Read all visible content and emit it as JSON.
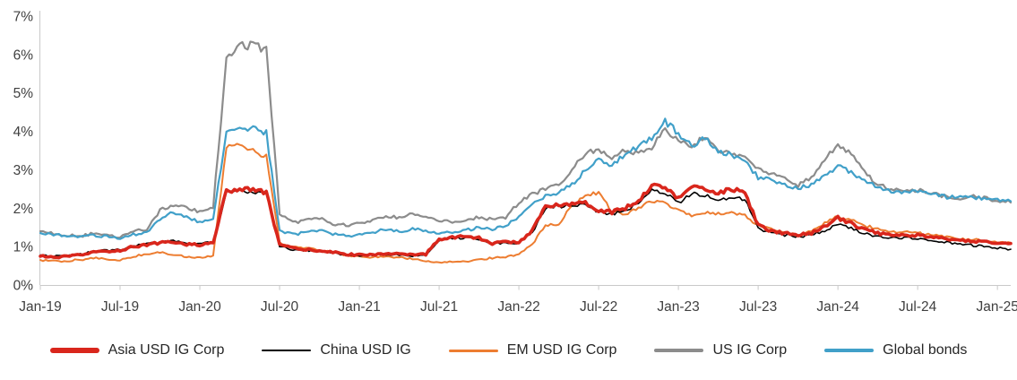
{
  "figure": {
    "background": "#FFFFFF"
  },
  "chart_data": {
    "type": "line",
    "title": "",
    "xlabel": "",
    "ylabel": "",
    "ylim": [
      0,
      7
    ],
    "grid": false,
    "legend_position": "bottom",
    "axis_color": "#C9C9C9",
    "tick_label_color": "#404040",
    "ytick_labels": [
      "0%",
      "1%",
      "2%",
      "3%",
      "4%",
      "5%",
      "6%",
      "7%"
    ],
    "xtick_labels": [
      "Jan-19",
      "Jul-19",
      "Jan-20",
      "Jul-20",
      "Jan-21",
      "Jul-21",
      "Jan-22",
      "Jul-22",
      "Jan-23",
      "Jul-23",
      "Jan-24",
      "Jul-24",
      "Jan-25"
    ],
    "xtick_every_n_points": 6,
    "x": [
      "Jan-19",
      "Feb-19",
      "Mar-19",
      "Apr-19",
      "May-19",
      "Jun-19",
      "Jul-19",
      "Aug-19",
      "Sep-19",
      "Oct-19",
      "Nov-19",
      "Dec-19",
      "Jan-20",
      "Feb-20",
      "Mar-20",
      "Apr-20",
      "May-20",
      "Jun-20",
      "Jul-20",
      "Aug-20",
      "Sep-20",
      "Oct-20",
      "Nov-20",
      "Dec-20",
      "Jan-21",
      "Feb-21",
      "Mar-21",
      "Apr-21",
      "May-21",
      "Jun-21",
      "Jul-21",
      "Aug-21",
      "Sep-21",
      "Oct-21",
      "Nov-21",
      "Dec-21",
      "Jan-22",
      "Feb-22",
      "Mar-22",
      "Apr-22",
      "May-22",
      "Jun-22",
      "Jul-22",
      "Aug-22",
      "Sep-22",
      "Oct-22",
      "Nov-22",
      "Dec-22",
      "Jan-23",
      "Feb-23",
      "Mar-23",
      "Apr-23",
      "May-23",
      "Jun-23",
      "Jul-23",
      "Aug-23",
      "Sep-23",
      "Oct-23",
      "Nov-23",
      "Dec-23",
      "Jan-24",
      "Feb-24",
      "Mar-24",
      "Apr-24",
      "May-24",
      "Jun-24",
      "Jul-24",
      "Aug-24",
      "Sep-24",
      "Oct-24",
      "Nov-24",
      "Dec-24",
      "Jan-25",
      "Feb-25"
    ],
    "series": [
      {
        "name": "Asia USD IG Corp",
        "color": "#D9261C",
        "line_width": 3.6,
        "legend_weight": 6,
        "values": [
          0.75,
          0.72,
          0.74,
          0.78,
          0.85,
          0.88,
          0.9,
          1.0,
          1.05,
          1.1,
          1.12,
          1.06,
          1.05,
          1.1,
          2.45,
          2.5,
          2.48,
          2.4,
          1.05,
          0.95,
          0.92,
          0.9,
          0.85,
          0.8,
          0.78,
          0.8,
          0.82,
          0.8,
          0.78,
          0.8,
          1.2,
          1.25,
          1.26,
          1.22,
          1.08,
          1.12,
          1.12,
          1.4,
          2.05,
          2.1,
          2.12,
          2.15,
          1.95,
          1.9,
          2.0,
          2.2,
          2.6,
          2.55,
          2.25,
          2.55,
          2.5,
          2.4,
          2.5,
          2.4,
          1.55,
          1.4,
          1.35,
          1.3,
          1.35,
          1.5,
          1.75,
          1.6,
          1.45,
          1.35,
          1.32,
          1.3,
          1.3,
          1.25,
          1.2,
          1.15,
          1.15,
          1.12,
          1.1,
          1.08
        ]
      },
      {
        "name": "China USD IG",
        "color": "#000000",
        "line_width": 1.6,
        "legend_weight": 2.5,
        "values": [
          0.78,
          0.75,
          0.77,
          0.8,
          0.87,
          0.9,
          0.92,
          1.02,
          1.07,
          1.12,
          1.14,
          1.08,
          1.07,
          1.12,
          2.4,
          2.45,
          2.43,
          2.35,
          1.0,
          0.92,
          0.9,
          0.88,
          0.83,
          0.78,
          0.76,
          0.78,
          0.8,
          0.78,
          0.76,
          0.78,
          1.18,
          1.22,
          1.23,
          1.2,
          1.06,
          1.1,
          1.1,
          1.36,
          2.0,
          2.05,
          2.07,
          2.1,
          1.9,
          1.85,
          1.95,
          2.1,
          2.45,
          2.4,
          2.12,
          2.38,
          2.32,
          2.22,
          2.3,
          2.22,
          1.48,
          1.35,
          1.3,
          1.26,
          1.3,
          1.42,
          1.58,
          1.48,
          1.34,
          1.27,
          1.24,
          1.22,
          1.22,
          1.17,
          1.12,
          1.07,
          1.04,
          1.0,
          0.96,
          0.93
        ]
      },
      {
        "name": "EM USD IG Corp",
        "color": "#ED7D31",
        "line_width": 2.0,
        "legend_weight": 3,
        "values": [
          0.65,
          0.62,
          0.63,
          0.66,
          0.7,
          0.68,
          0.65,
          0.75,
          0.8,
          0.85,
          0.8,
          0.73,
          0.7,
          0.76,
          3.6,
          3.7,
          3.5,
          3.35,
          1.1,
          1.0,
          0.96,
          0.92,
          0.84,
          0.78,
          0.75,
          0.72,
          0.74,
          0.72,
          0.68,
          0.62,
          0.58,
          0.6,
          0.62,
          0.66,
          0.7,
          0.73,
          0.8,
          1.05,
          1.55,
          1.6,
          2.05,
          2.35,
          2.4,
          1.9,
          1.85,
          2.0,
          2.2,
          2.15,
          1.95,
          1.82,
          1.9,
          1.85,
          1.9,
          1.8,
          1.55,
          1.45,
          1.36,
          1.3,
          1.4,
          1.6,
          1.8,
          1.7,
          1.55,
          1.45,
          1.4,
          1.38,
          1.35,
          1.3,
          1.25,
          1.2,
          1.18,
          1.15,
          1.12,
          1.1
        ]
      },
      {
        "name": "US IG Corp",
        "color": "#8C8C8C",
        "line_width": 2.2,
        "legend_weight": 3.5,
        "values": [
          1.4,
          1.34,
          1.3,
          1.26,
          1.35,
          1.3,
          1.25,
          1.4,
          1.45,
          1.95,
          2.1,
          2.0,
          1.92,
          2.0,
          5.9,
          6.2,
          6.25,
          6.1,
          1.85,
          1.62,
          1.7,
          1.76,
          1.6,
          1.55,
          1.6,
          1.7,
          1.8,
          1.74,
          1.85,
          1.8,
          1.7,
          1.65,
          1.7,
          1.76,
          1.7,
          1.76,
          2.15,
          2.35,
          2.5,
          2.6,
          3.0,
          3.4,
          3.55,
          3.3,
          3.5,
          3.45,
          3.6,
          4.05,
          3.8,
          3.6,
          3.9,
          3.5,
          3.45,
          3.3,
          3.0,
          2.9,
          2.76,
          2.6,
          2.8,
          3.2,
          3.7,
          3.4,
          2.92,
          2.62,
          2.48,
          2.42,
          2.46,
          2.4,
          2.32,
          2.26,
          2.3,
          2.26,
          2.2,
          2.15
        ]
      },
      {
        "name": "Global bonds",
        "color": "#41A0C9",
        "line_width": 2.2,
        "legend_weight": 3.5,
        "values": [
          1.35,
          1.3,
          1.28,
          1.25,
          1.3,
          1.26,
          1.22,
          1.32,
          1.36,
          1.7,
          1.9,
          1.78,
          1.62,
          1.72,
          3.95,
          4.05,
          4.05,
          3.95,
          1.4,
          1.32,
          1.36,
          1.42,
          1.32,
          1.28,
          1.3,
          1.36,
          1.46,
          1.4,
          1.46,
          1.42,
          1.36,
          1.36,
          1.42,
          1.5,
          1.46,
          1.52,
          1.8,
          2.1,
          2.3,
          2.4,
          2.6,
          3.0,
          3.3,
          3.1,
          3.4,
          3.6,
          3.8,
          4.25,
          3.95,
          3.6,
          3.85,
          3.5,
          3.4,
          3.2,
          2.8,
          2.72,
          2.6,
          2.5,
          2.62,
          2.82,
          3.1,
          2.95,
          2.72,
          2.56,
          2.46,
          2.4,
          2.42,
          2.36,
          2.3,
          2.26,
          2.3,
          2.26,
          2.22,
          2.18
        ]
      }
    ]
  }
}
